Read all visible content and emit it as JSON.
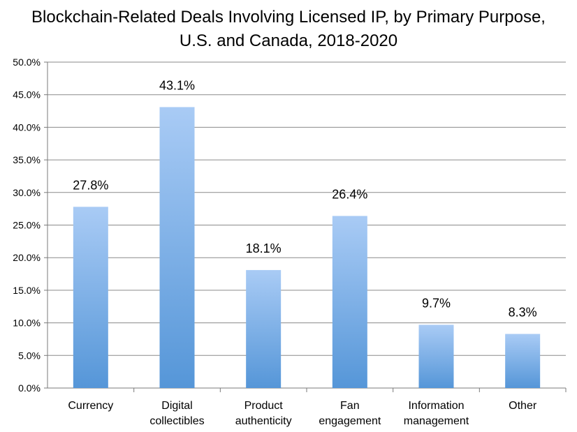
{
  "chart_data": {
    "type": "bar",
    "title_lines": [
      "Blockchain-Related Deals Involving Licensed IP, by Primary Purpose,",
      "U.S. and Canada, 2018-2020"
    ],
    "categories": [
      [
        "Currency"
      ],
      [
        "Digital",
        "collectibles"
      ],
      [
        "Product",
        "authenticity"
      ],
      [
        "Fan",
        "engagement"
      ],
      [
        "Information",
        "management"
      ],
      [
        "Other"
      ]
    ],
    "values": [
      27.8,
      43.1,
      18.1,
      26.4,
      9.7,
      8.3
    ],
    "data_labels": [
      "27.8%",
      "43.1%",
      "18.1%",
      "26.4%",
      "9.7%",
      "8.3%"
    ],
    "y_ticks": [
      "0.0%",
      "5.0%",
      "10.0%",
      "15.0%",
      "20.0%",
      "25.0%",
      "30.0%",
      "35.0%",
      "40.0%",
      "45.0%",
      "50.0%"
    ],
    "ylim": [
      0,
      50
    ],
    "grid": true,
    "legend": "none",
    "colors": {
      "bar_top": "#a9cbf5",
      "bar_bottom": "#5596d8",
      "grid": "#8a8a8a",
      "axis": "#7a7a7a"
    }
  }
}
